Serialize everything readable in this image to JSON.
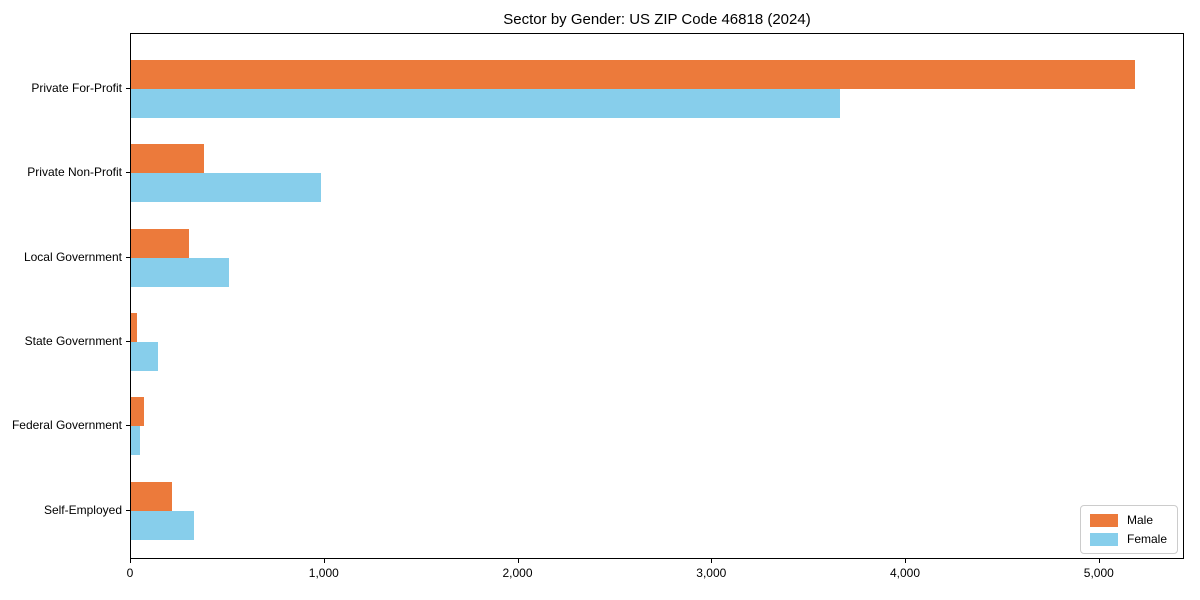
{
  "chart_data": {
    "type": "bar",
    "orientation": "horizontal",
    "title": "Sector by Gender: US ZIP Code 46818 (2024)",
    "categories": [
      "Private For-Profit",
      "Private Non-Profit",
      "Local Government",
      "State Government",
      "Federal Government",
      "Self-Employed"
    ],
    "series": [
      {
        "name": "Male",
        "color": "#EC7A3B",
        "values": [
          5180,
          375,
          300,
          30,
          65,
          210
        ]
      },
      {
        "name": "Female",
        "color": "#87CEEB",
        "values": [
          3660,
          980,
          505,
          140,
          45,
          325
        ]
      }
    ],
    "xlabel": "",
    "ylabel": "",
    "xlim": [
      0,
      5440
    ],
    "xticks": [
      0,
      1000,
      2000,
      3000,
      4000,
      5000
    ],
    "xtick_labels": [
      "0",
      "1,000",
      "2,000",
      "3,000",
      "4,000",
      "5,000"
    ],
    "legend_position": "lower right",
    "grid": false,
    "colors": {
      "male": "#EC7A3B",
      "female": "#87CEEB",
      "spine": "#000000",
      "legend_border": "#cccccc",
      "background": "#ffffff"
    }
  }
}
